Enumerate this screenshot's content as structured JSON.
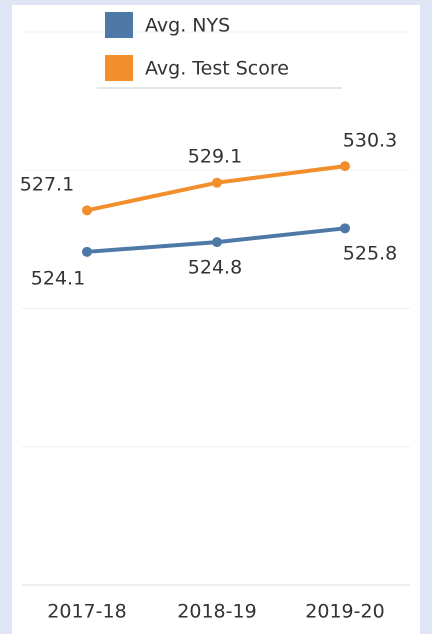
{
  "chart_data": {
    "type": "line",
    "categories": [
      "2017-18",
      "2018-19",
      "2019-20"
    ],
    "series": [
      {
        "name": "Avg. NYS",
        "color": "#4e79a7",
        "values": [
          524.1,
          524.8,
          525.8
        ]
      },
      {
        "name": "Avg. Test Score",
        "color": "#f28e2b",
        "values": [
          527.1,
          529.1,
          530.3
        ]
      }
    ],
    "ylim": [
      500,
      540
    ],
    "yticks": [
      500,
      510,
      520,
      530,
      540
    ],
    "grid": true,
    "legend": "top"
  }
}
